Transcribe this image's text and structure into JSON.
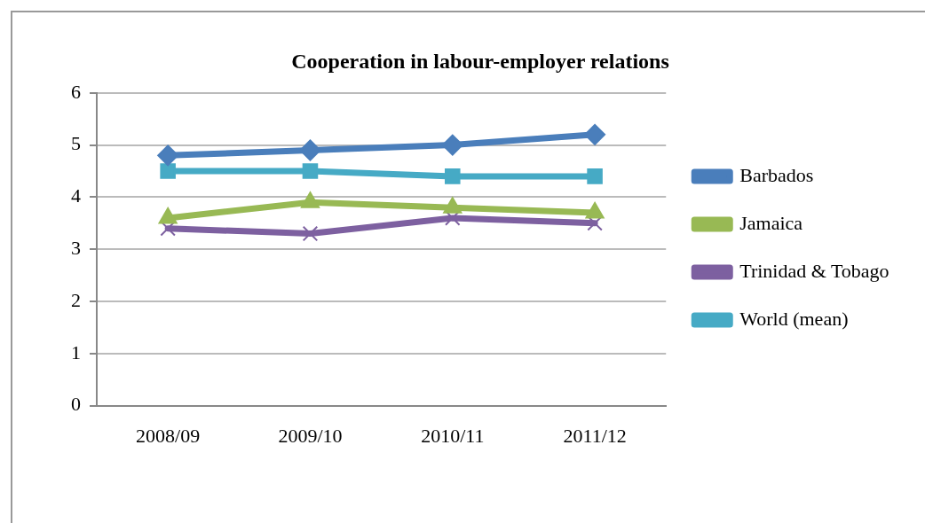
{
  "chart_data": {
    "type": "line",
    "title": "Cooperation in labour-employer relations",
    "categories": [
      "2008/09",
      "2009/10",
      "2010/11",
      "2011/12"
    ],
    "series": [
      {
        "name": "Barbados",
        "color": "#4a7ebb",
        "marker": "diamond",
        "values": [
          4.8,
          4.9,
          5.0,
          5.2
        ]
      },
      {
        "name": "Jamaica",
        "color": "#98b954",
        "marker": "triangle",
        "values": [
          3.6,
          3.9,
          3.8,
          3.7
        ]
      },
      {
        "name": "Trinidad & Tobago",
        "color": "#7d60a0",
        "marker": "cross",
        "values": [
          3.4,
          3.3,
          3.6,
          3.5
        ]
      },
      {
        "name": "World (mean)",
        "color": "#46aac5",
        "marker": "square",
        "values": [
          4.5,
          4.5,
          4.4,
          4.4
        ]
      }
    ],
    "ylim": [
      0,
      6
    ],
    "yticks": [
      0,
      1,
      2,
      3,
      4,
      5,
      6
    ],
    "grid": "y",
    "legend": "right"
  }
}
